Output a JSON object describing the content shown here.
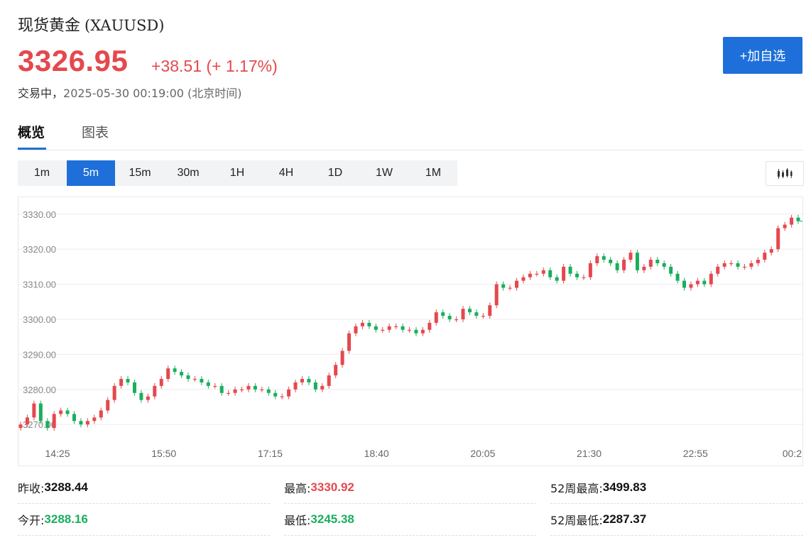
{
  "quote": {
    "name": "现货黄金",
    "symbol": "(XAUUSD)",
    "price": "3326.95",
    "change": "+38.51 (+ 1.17%)",
    "status": "交易中，",
    "timestamp": "2025-05-30 00:19:00",
    "timezone": "(北京时间)"
  },
  "actions": {
    "follow_label": "+加自选"
  },
  "tabs": [
    {
      "label": "概览"
    },
    {
      "label": "图表"
    }
  ],
  "periods": [
    "1m",
    "5m",
    "15m",
    "30m",
    "1H",
    "4H",
    "1D",
    "1W",
    "1M"
  ],
  "selected_period": "5m",
  "stats": {
    "prev_close_label": "昨收:",
    "prev_close": "3288.44",
    "high_label": "最高:",
    "high": "3330.92",
    "week52_high_label": "52周最高:",
    "week52_high": "3499.83",
    "open_label": "今开:",
    "open": "3288.16",
    "low_label": "最低:",
    "low": "3245.38",
    "week52_low_label": "52周最低:",
    "week52_low": "2287.37"
  },
  "colors": {
    "up": "#e5484d",
    "down": "#1aae5e",
    "accent": "#1e6fd9"
  },
  "chart_data": {
    "type": "candlestick",
    "ylim": [
      3266,
      3334
    ],
    "y_ticks": [
      "3330.00",
      "3320.00",
      "3310.00",
      "3300.00",
      "3290.00",
      "3280.00",
      "3270.00"
    ],
    "x_ticks": [
      "14:25",
      "15:50",
      "17:15",
      "18:40",
      "20:05",
      "21:30",
      "22:55",
      "00:2"
    ],
    "closes": [
      3270,
      3272,
      3276,
      3271,
      3269,
      3273,
      3274,
      3273,
      3271,
      3270,
      3271,
      3272,
      3274,
      3277,
      3281,
      3283,
      3282,
      3279,
      3277,
      3278,
      3281,
      3283,
      3286,
      3285,
      3284,
      3283,
      3283,
      3282,
      3281,
      3281,
      3279,
      3279,
      3280,
      3280,
      3281,
      3280,
      3280,
      3279,
      3278,
      3278,
      3280,
      3282,
      3283,
      3282,
      3280,
      3281,
      3284,
      3287,
      3291,
      3296,
      3298,
      3299,
      3298,
      3297,
      3297,
      3298,
      3298,
      3297,
      3297,
      3296,
      3297,
      3299,
      3302,
      3301,
      3300,
      3300,
      3303,
      3302,
      3301,
      3301,
      3304,
      3310,
      3309,
      3309,
      3311,
      3312,
      3313,
      3313,
      3314,
      3312,
      3311,
      3315,
      3313,
      3312,
      3312,
      3316,
      3318,
      3317,
      3316,
      3314,
      3317,
      3319,
      3314,
      3315,
      3317,
      3316,
      3315,
      3313,
      3311,
      3309,
      3310,
      3311,
      3310,
      3313,
      3315,
      3316,
      3316,
      3315,
      3315,
      3316,
      3317,
      3319,
      3320,
      3326,
      3327,
      3329,
      3328
    ]
  }
}
